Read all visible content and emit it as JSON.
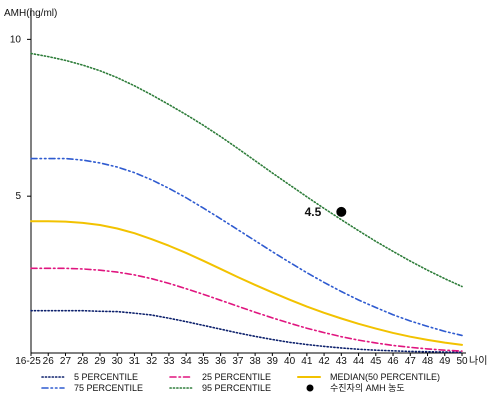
{
  "chart_data": {
    "type": "line",
    "ylabel": "AMH(ng/ml)",
    "xlabel": "나이",
    "categories": [
      "16-25",
      "26",
      "27",
      "28",
      "29",
      "30",
      "31",
      "32",
      "33",
      "34",
      "35",
      "36",
      "37",
      "38",
      "39",
      "40",
      "41",
      "42",
      "43",
      "44",
      "45",
      "46",
      "47",
      "48",
      "49",
      "50"
    ],
    "y_ticks": [
      5,
      10
    ],
    "ylim": [
      0,
      11
    ],
    "grid": false,
    "legend_position": "bottom",
    "series": [
      {
        "name": "5 PERCENTILE",
        "color": "#0b1f6b",
        "dash": "dotted",
        "values": [
          1.35,
          1.35,
          1.35,
          1.35,
          1.33,
          1.32,
          1.27,
          1.21,
          1.11,
          1.0,
          0.88,
          0.76,
          0.64,
          0.53,
          0.43,
          0.34,
          0.27,
          0.21,
          0.16,
          0.12,
          0.09,
          0.07,
          0.05,
          0.04,
          0.03,
          0.02
        ]
      },
      {
        "name": "25 PERCENTILE",
        "color": "#e0157f",
        "dash": "dashdot",
        "values": [
          2.7,
          2.7,
          2.7,
          2.68,
          2.64,
          2.58,
          2.49,
          2.37,
          2.22,
          2.05,
          1.87,
          1.68,
          1.49,
          1.3,
          1.12,
          0.95,
          0.79,
          0.65,
          0.52,
          0.41,
          0.32,
          0.24,
          0.18,
          0.13,
          0.09,
          0.06
        ]
      },
      {
        "name": "MEDIAN(50 PERCENTILE)",
        "color": "#f2c200",
        "dash": "solid",
        "values": [
          4.2,
          4.2,
          4.19,
          4.15,
          4.08,
          3.97,
          3.82,
          3.63,
          3.42,
          3.19,
          2.94,
          2.68,
          2.42,
          2.17,
          1.93,
          1.7,
          1.48,
          1.28,
          1.1,
          0.93,
          0.78,
          0.64,
          0.52,
          0.42,
          0.33,
          0.26
        ]
      },
      {
        "name": "75 PERCENTILE",
        "color": "#2f5bd0",
        "dash": "dashdotdot",
        "values": [
          6.2,
          6.2,
          6.2,
          6.15,
          6.06,
          5.93,
          5.75,
          5.52,
          5.25,
          4.95,
          4.62,
          4.28,
          3.93,
          3.58,
          3.23,
          2.89,
          2.56,
          2.25,
          1.96,
          1.69,
          1.45,
          1.22,
          1.02,
          0.85,
          0.69,
          0.56
        ]
      },
      {
        "name": "95 PERCENTILE",
        "color": "#2e7d3a",
        "dash": "dotted",
        "values": [
          9.55,
          9.45,
          9.33,
          9.18,
          9.0,
          8.78,
          8.52,
          8.23,
          7.92,
          7.6,
          7.26,
          6.9,
          6.52,
          6.13,
          5.74,
          5.36,
          4.98,
          4.61,
          4.25,
          3.9,
          3.56,
          3.24,
          2.93,
          2.64,
          2.37,
          2.12
        ]
      }
    ],
    "marker": {
      "label": "수진자의 AMH 농도",
      "x": "43",
      "y": 4.5,
      "text": "4.5",
      "color": "#000000"
    }
  }
}
